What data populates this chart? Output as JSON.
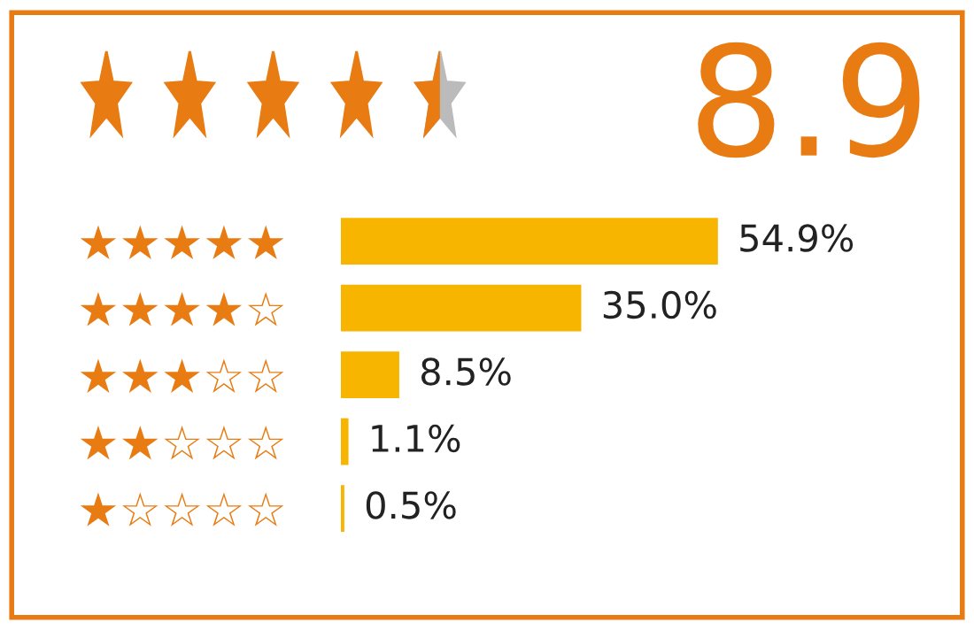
{
  "chart_data": {
    "type": "bar",
    "orientation": "horizontal",
    "categories": [
      "★★★★★",
      "★★★★☆",
      "★★★☆☆",
      "★★☆☆☆",
      "★☆☆☆☆"
    ],
    "values": [
      54.9,
      35.0,
      8.5,
      1.1,
      0.5
    ],
    "value_labels": [
      "54.9%",
      "35.0%",
      "8.5%",
      "1.1%",
      "0.5%"
    ],
    "color": "#f7b500",
    "annotations": [
      "8.9"
    ],
    "grid": false,
    "legend": false
  }
}
